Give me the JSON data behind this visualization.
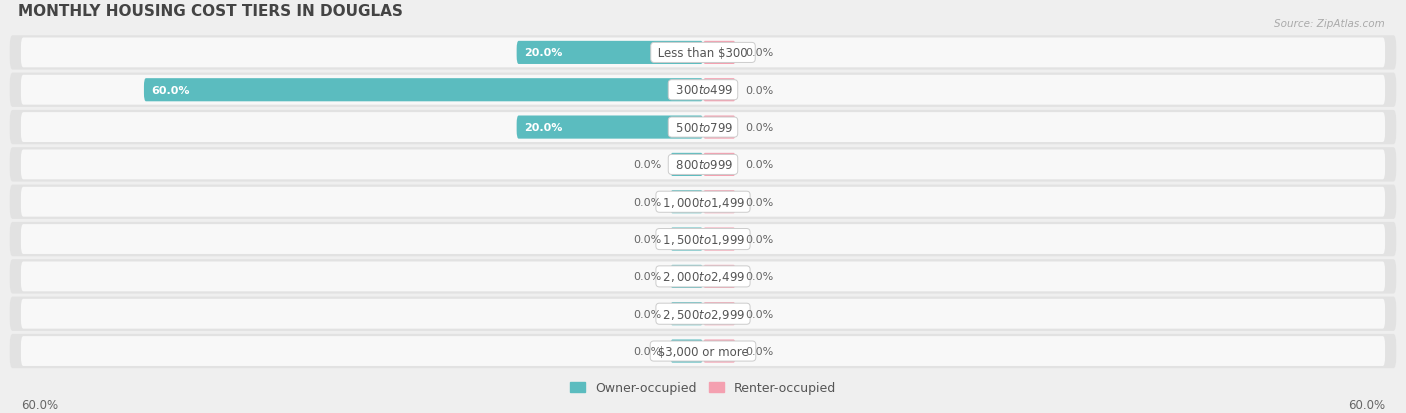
{
  "title": "MONTHLY HOUSING COST TIERS IN DOUGLAS",
  "source": "Source: ZipAtlas.com",
  "categories": [
    "Less than $300",
    "$300 to $499",
    "$500 to $799",
    "$800 to $999",
    "$1,000 to $1,499",
    "$1,500 to $1,999",
    "$2,000 to $2,499",
    "$2,500 to $2,999",
    "$3,000 or more"
  ],
  "owner_values": [
    20.0,
    60.0,
    20.0,
    0.0,
    0.0,
    0.0,
    0.0,
    0.0,
    0.0
  ],
  "renter_values": [
    0.0,
    0.0,
    0.0,
    0.0,
    0.0,
    0.0,
    0.0,
    0.0,
    0.0
  ],
  "owner_color": "#5bbcbf",
  "renter_color": "#f4a0b0",
  "background_color": "#efefef",
  "row_bg_color": "#e2e2e2",
  "bar_background_color": "#f8f8f8",
  "max_value": 60.0,
  "min_stub": 3.5,
  "title_fontsize": 11,
  "label_fontsize": 8.5,
  "value_fontsize": 8.0,
  "axis_label_fontsize": 8.5,
  "legend_fontsize": 9
}
